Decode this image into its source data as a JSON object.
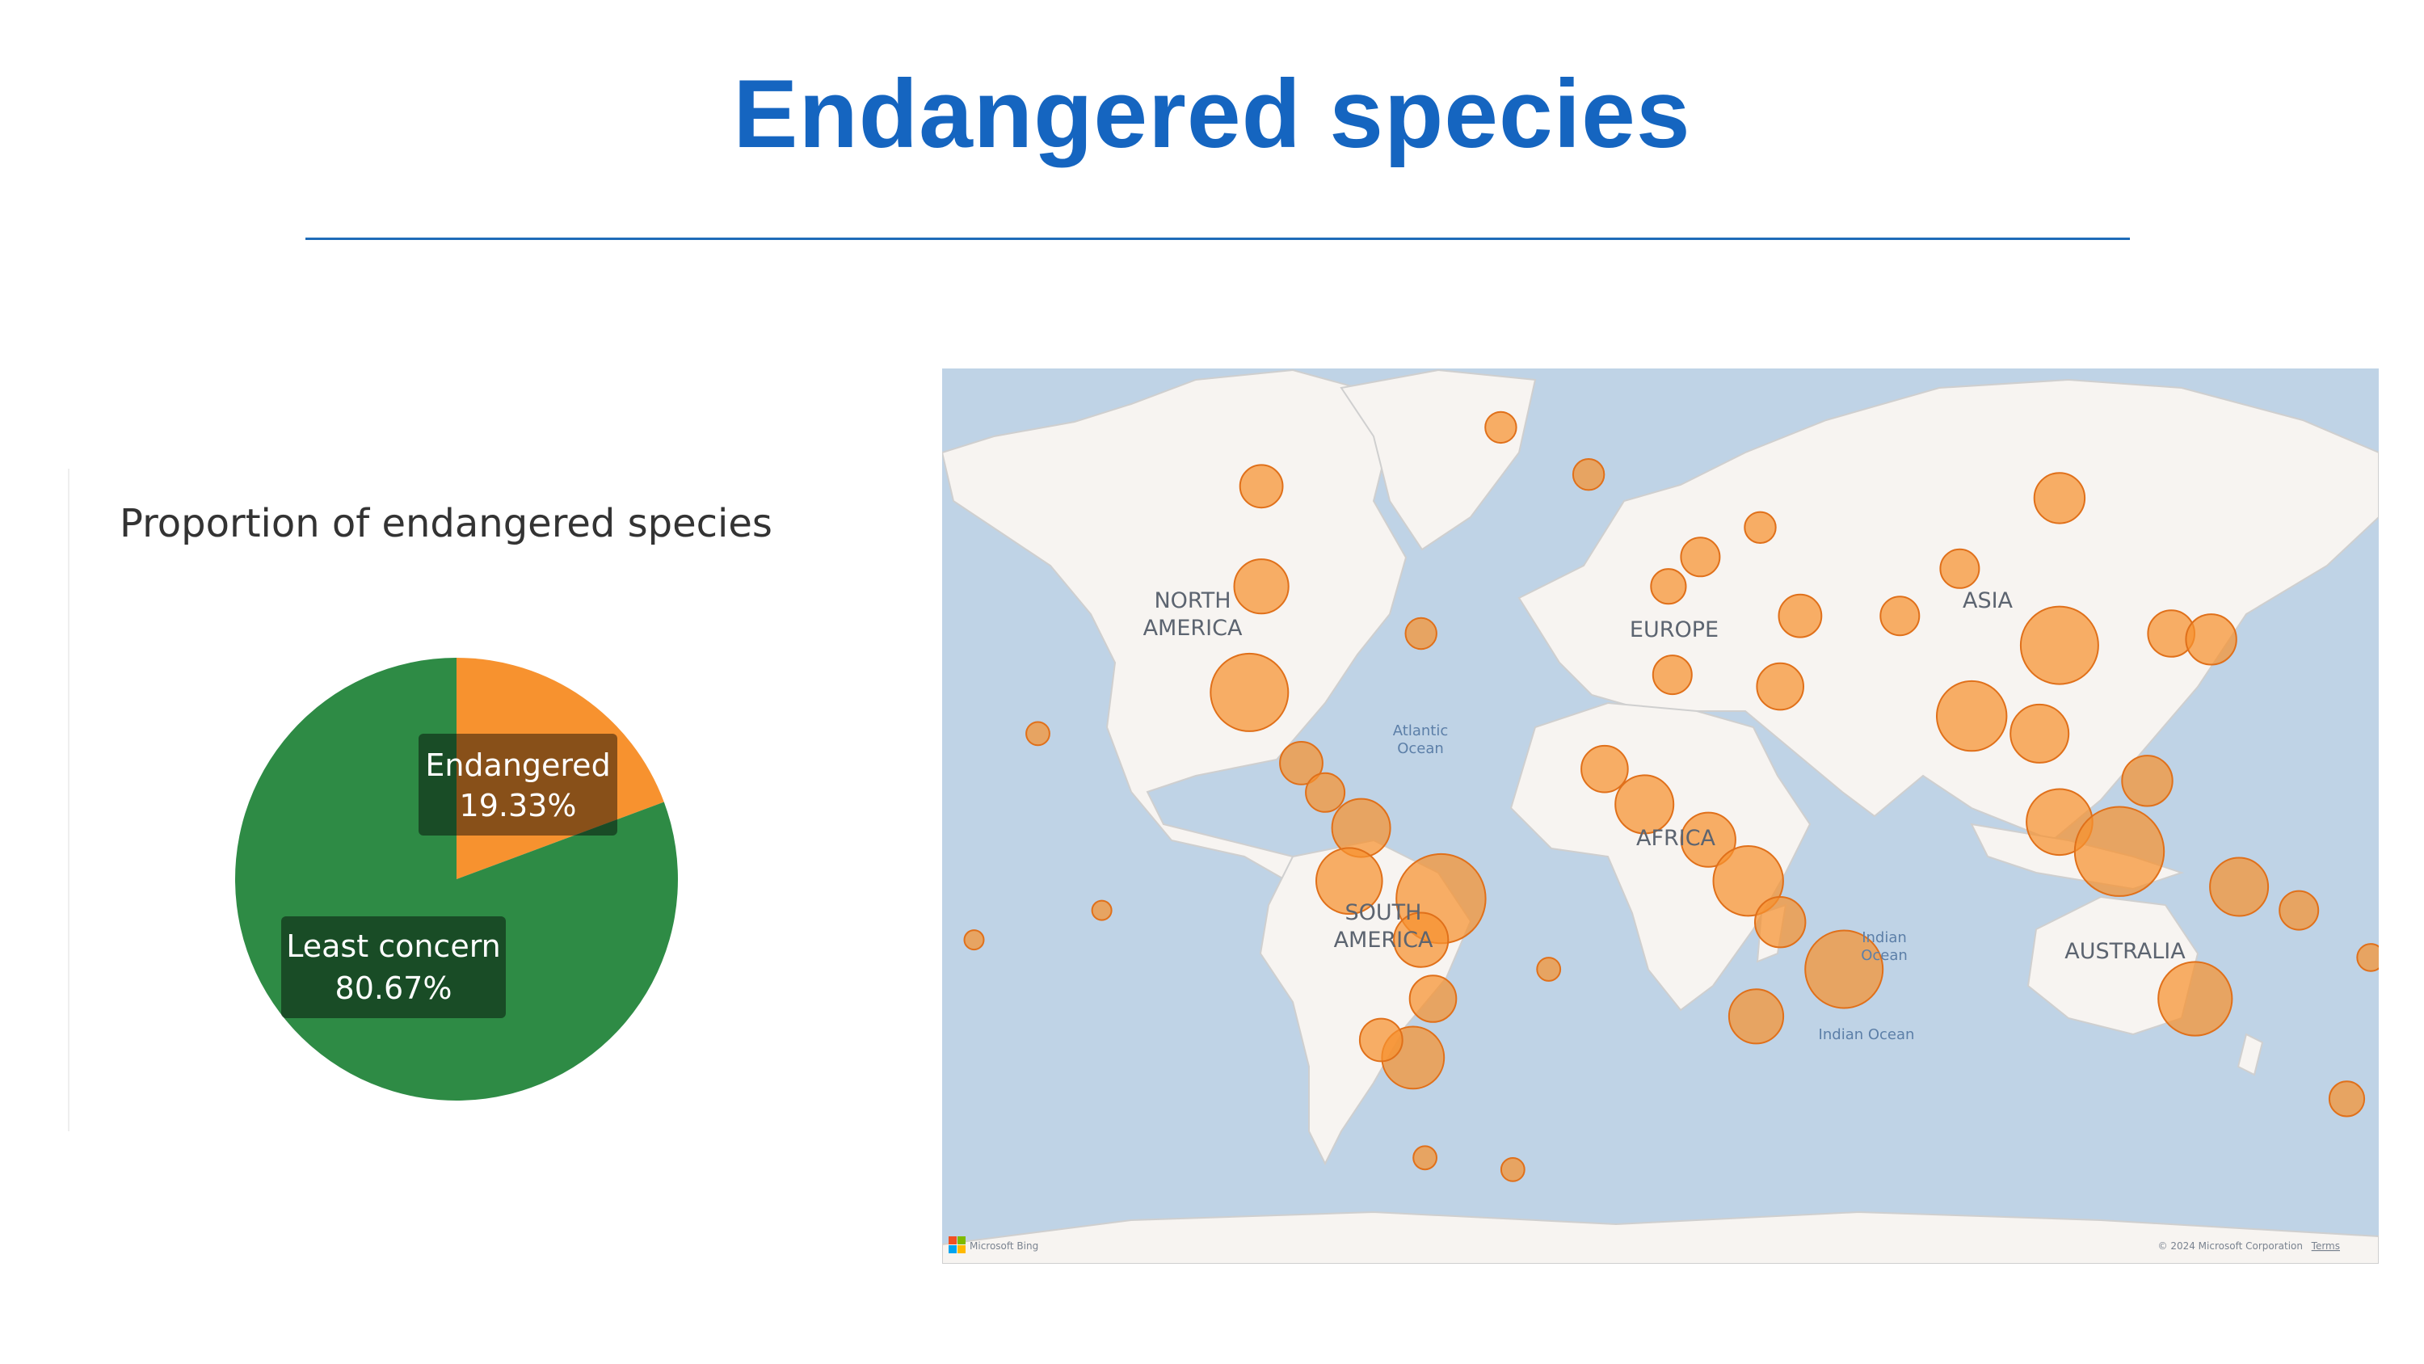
{
  "page": {
    "title": "Endangered species"
  },
  "pie": {
    "title": "Proportion of endangered species",
    "slices": [
      {
        "label": "Endangered",
        "percent_label": "19.33%",
        "value": 19.33,
        "color": "#f7922f"
      },
      {
        "label": "Least concern",
        "percent_label": "80.67%",
        "value": 80.67,
        "color": "#2e8b45"
      }
    ]
  },
  "map": {
    "regions": [
      "NORTH",
      "AMERICA",
      "SOUTH",
      "AMERICA",
      "EUROPE",
      "AFRICA",
      "ASIA",
      "AUSTRALIA"
    ],
    "oceans": [
      "Atlantic",
      "Ocean",
      "Indian",
      "Ocean",
      "Indian Ocean"
    ],
    "provider": "Microsoft Bing",
    "copyright": "© 2024 Microsoft Corporation",
    "terms": "Terms",
    "colors": {
      "water": "#bfd3e6",
      "land": "#f7f4f1",
      "bubble": "#f7922f",
      "bubble_stroke": "#e0701a"
    }
  },
  "chart_data": [
    {
      "type": "pie",
      "title": "Proportion of endangered species",
      "categories": [
        "Endangered",
        "Least concern"
      ],
      "values": [
        19.33,
        80.67
      ],
      "colors": [
        "#f7922f",
        "#2e8b45"
      ]
    },
    {
      "type": "scatter",
      "subtype": "bubble-map",
      "points": [
        {
          "lat": 72,
          "lon": -40,
          "size": 16
        },
        {
          "lat": 62,
          "lon": -100,
          "size": 22
        },
        {
          "lat": 64,
          "lon": -18,
          "size": 16
        },
        {
          "lat": 45,
          "lon": -100,
          "size": 28
        },
        {
          "lat": 27,
          "lon": -103,
          "size": 40
        },
        {
          "lat": 37,
          "lon": -60,
          "size": 16
        },
        {
          "lat": 15,
          "lon": -90,
          "size": 22
        },
        {
          "lat": 10,
          "lon": -84,
          "size": 20
        },
        {
          "lat": 4,
          "lon": -75,
          "size": 30
        },
        {
          "lat": -5,
          "lon": -78,
          "size": 34
        },
        {
          "lat": -8,
          "lon": -55,
          "size": 46
        },
        {
          "lat": -15,
          "lon": -60,
          "size": 28
        },
        {
          "lat": -25,
          "lon": -57,
          "size": 24
        },
        {
          "lat": -35,
          "lon": -62,
          "size": 32
        },
        {
          "lat": -32,
          "lon": -70,
          "size": 22
        },
        {
          "lat": -52,
          "lon": -59,
          "size": 12
        },
        {
          "lat": -54,
          "lon": -37,
          "size": 12
        },
        {
          "lat": -20,
          "lon": -28,
          "size": 12
        },
        {
          "lat": 8,
          "lon": -4,
          "size": 30
        },
        {
          "lat": 14,
          "lon": -14,
          "size": 24
        },
        {
          "lat": 2,
          "lon": 12,
          "size": 28
        },
        {
          "lat": -5,
          "lon": 22,
          "size": 36
        },
        {
          "lat": -12,
          "lon": 30,
          "size": 26
        },
        {
          "lat": -20,
          "lon": 46,
          "size": 40
        },
        {
          "lat": -28,
          "lon": 24,
          "size": 28
        },
        {
          "lat": 28,
          "lon": 30,
          "size": 24
        },
        {
          "lat": 30,
          "lon": 3,
          "size": 20
        },
        {
          "lat": 50,
          "lon": 10,
          "size": 20
        },
        {
          "lat": 45,
          "lon": 2,
          "size": 18
        },
        {
          "lat": 55,
          "lon": 25,
          "size": 16
        },
        {
          "lat": 40,
          "lon": 35,
          "size": 22
        },
        {
          "lat": 40,
          "lon": 60,
          "size": 20
        },
        {
          "lat": 60,
          "lon": 100,
          "size": 26
        },
        {
          "lat": 48,
          "lon": 75,
          "size": 20
        },
        {
          "lat": 35,
          "lon": 100,
          "size": 40
        },
        {
          "lat": 23,
          "lon": 78,
          "size": 36
        },
        {
          "lat": 20,
          "lon": 95,
          "size": 30
        },
        {
          "lat": 5,
          "lon": 100,
          "size": 34
        },
        {
          "lat": 0,
          "lon": 115,
          "size": 46
        },
        {
          "lat": 12,
          "lon": 122,
          "size": 26
        },
        {
          "lat": 37,
          "lon": 128,
          "size": 24
        },
        {
          "lat": 36,
          "lon": 138,
          "size": 26
        },
        {
          "lat": -6,
          "lon": 145,
          "size": 30
        },
        {
          "lat": -25,
          "lon": 134,
          "size": 38
        },
        {
          "lat": -10,
          "lon": 160,
          "size": 20
        },
        {
          "lat": -18,
          "lon": 178,
          "size": 14
        },
        {
          "lat": -42,
          "lon": 172,
          "size": 18
        },
        {
          "lat": 20,
          "lon": -156,
          "size": 12
        },
        {
          "lat": -10,
          "lon": -140,
          "size": 10
        },
        {
          "lat": -15,
          "lon": -172,
          "size": 10
        }
      ]
    }
  ]
}
